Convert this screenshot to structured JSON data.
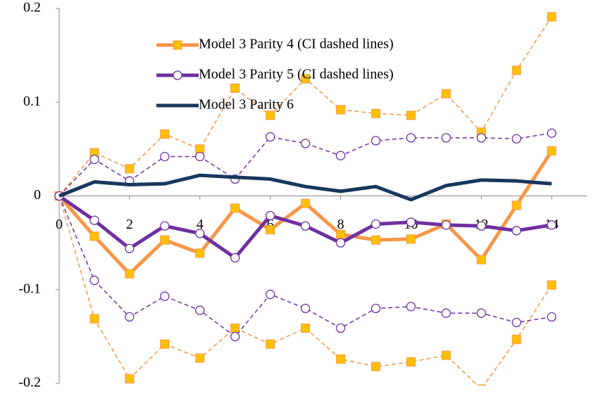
{
  "chart_data": {
    "type": "line",
    "x": [
      0,
      1,
      2,
      3,
      4,
      5,
      6,
      7,
      8,
      9,
      10,
      11,
      12,
      13,
      14
    ],
    "xlim": [
      0,
      15
    ],
    "xticks": [
      0,
      2,
      4,
      6,
      8,
      10,
      12,
      14
    ],
    "ylim": [
      -0.2,
      0.2
    ],
    "yticks": [
      -0.2,
      -0.1,
      0,
      0.1,
      0.2
    ],
    "series": [
      {
        "color": "#f79646",
        "marker": "square",
        "marker_fill": "#ffc000",
        "style": "dashed",
        "values": [
          0,
          0.046,
          0.029,
          0.066,
          0.05,
          0.115,
          0.086,
          0.125,
          0.092,
          0.088,
          0.086,
          0.109,
          0.068,
          0.134,
          0.191
        ]
      },
      {
        "color": "#f79646",
        "marker": "square",
        "marker_fill": "#ffc000",
        "style": "dashed",
        "values": [
          0,
          -0.131,
          -0.195,
          -0.158,
          -0.173,
          -0.141,
          -0.158,
          -0.141,
          -0.174,
          -0.182,
          -0.177,
          -0.17,
          -0.206,
          -0.153,
          -0.095
        ]
      },
      {
        "color": "#7030a0",
        "marker": "circle",
        "marker_fill": "#ffffff",
        "style": "dashed",
        "values": [
          0,
          0.039,
          0.016,
          0.042,
          0.042,
          0.018,
          0.063,
          0.056,
          0.043,
          0.059,
          0.062,
          0.062,
          0.062,
          0.061,
          0.067
        ]
      },
      {
        "color": "#7030a0",
        "marker": "circle",
        "marker_fill": "#ffffff",
        "style": "dashed",
        "values": [
          0,
          -0.09,
          -0.129,
          -0.107,
          -0.122,
          -0.15,
          -0.105,
          -0.12,
          -0.141,
          -0.12,
          -0.118,
          -0.125,
          -0.125,
          -0.135,
          -0.129
        ]
      },
      {
        "name": "Model 3 Parity 4 (CI dashed lines)",
        "color": "#f79646",
        "marker": "square",
        "marker_fill": "#ffc000",
        "style": "solid",
        "values": [
          0,
          -0.043,
          -0.083,
          -0.047,
          -0.061,
          -0.013,
          -0.036,
          -0.008,
          -0.041,
          -0.047,
          -0.046,
          -0.03,
          -0.068,
          -0.01,
          0.048
        ]
      },
      {
        "name": "Model 3 Parity 5 (CI dashed lines)",
        "color": "#7030a0",
        "marker": "circle",
        "marker_fill": "#ffffff",
        "style": "solid",
        "values": [
          0,
          -0.026,
          -0.056,
          -0.032,
          -0.04,
          -0.066,
          -0.021,
          -0.032,
          -0.05,
          -0.03,
          -0.028,
          -0.031,
          -0.032,
          -0.037,
          -0.031
        ]
      },
      {
        "name": "Model 3 Parity 6",
        "color": "#17375e",
        "marker": "none",
        "marker_fill": "#17375e",
        "style": "solid",
        "values": [
          0,
          0.015,
          0.012,
          0.013,
          0.022,
          0.02,
          0.018,
          0.01,
          0.005,
          0.01,
          -0.004,
          0.011,
          0.017,
          0.016,
          0.013
        ]
      }
    ]
  }
}
